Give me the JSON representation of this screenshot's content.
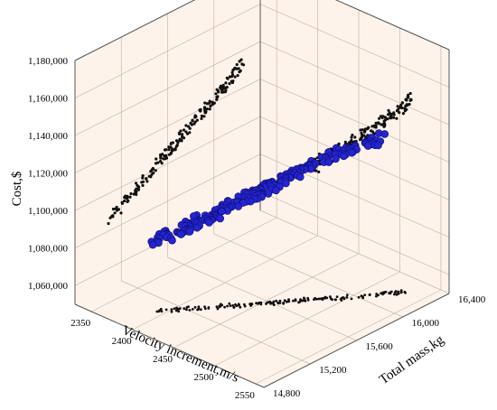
{
  "chart_data": {
    "type": "scatter3d",
    "zlabel": "Cost,$",
    "xlabel": "Velocity increment,m/s",
    "ylabel": "Total mass,kg",
    "z_ticks": [
      "1,060,000",
      "1,080,000",
      "1,100,000",
      "1,120,000",
      "1,140,000",
      "1,160,000",
      "1,180,000"
    ],
    "x_ticks": [
      "2350",
      "2400",
      "2450",
      "2500",
      "2550"
    ],
    "y_ticks": [
      "14,800",
      "15,200",
      "15,600",
      "16,000",
      "16,400"
    ],
    "xlim": [
      2330,
      2560
    ],
    "ylim": [
      14800,
      16400
    ],
    "zlim": [
      1050000,
      1180000
    ],
    "grid": true,
    "pane_color": "#fdf3ea",
    "series": [
      {
        "role": "data",
        "color": "#2424d0",
        "marker": "sphere",
        "points": [
          [
            2390,
            15050,
            1088000
          ],
          [
            2405,
            15150,
            1092000
          ],
          [
            2415,
            15250,
            1096000
          ],
          [
            2425,
            15350,
            1100000
          ],
          [
            2435,
            15450,
            1104000
          ],
          [
            2445,
            15550,
            1108000
          ],
          [
            2455,
            15650,
            1112000
          ],
          [
            2465,
            15750,
            1116000
          ],
          [
            2475,
            15850,
            1120000
          ],
          [
            2485,
            15950,
            1124000
          ],
          [
            2500,
            16050,
            1128000
          ],
          [
            2515,
            16150,
            1133000
          ]
        ]
      },
      {
        "role": "projection-xz",
        "color": "#111111",
        "marker": "dot",
        "points": [
          [
            2395,
            1086000
          ],
          [
            2410,
            1093000
          ],
          [
            2425,
            1100000
          ],
          [
            2440,
            1107000
          ],
          [
            2455,
            1114000
          ],
          [
            2470,
            1121000
          ],
          [
            2485,
            1129000
          ],
          [
            2500,
            1137000
          ],
          [
            2515,
            1146000
          ]
        ]
      },
      {
        "role": "projection-yz",
        "color": "#111111",
        "marker": "dot",
        "points": [
          [
            15100,
            1086000
          ],
          [
            15300,
            1094000
          ],
          [
            15500,
            1102000
          ],
          [
            15700,
            1110000
          ],
          [
            15900,
            1118000
          ],
          [
            16100,
            1126000
          ],
          [
            16250,
            1133000
          ]
        ]
      },
      {
        "role": "projection-xy",
        "color": "#111111",
        "marker": "dot",
        "points": [
          [
            2390,
            15050
          ],
          [
            2420,
            15300
          ],
          [
            2450,
            15550
          ],
          [
            2480,
            15800
          ],
          [
            2510,
            16050
          ],
          [
            2530,
            16250
          ]
        ]
      }
    ]
  }
}
